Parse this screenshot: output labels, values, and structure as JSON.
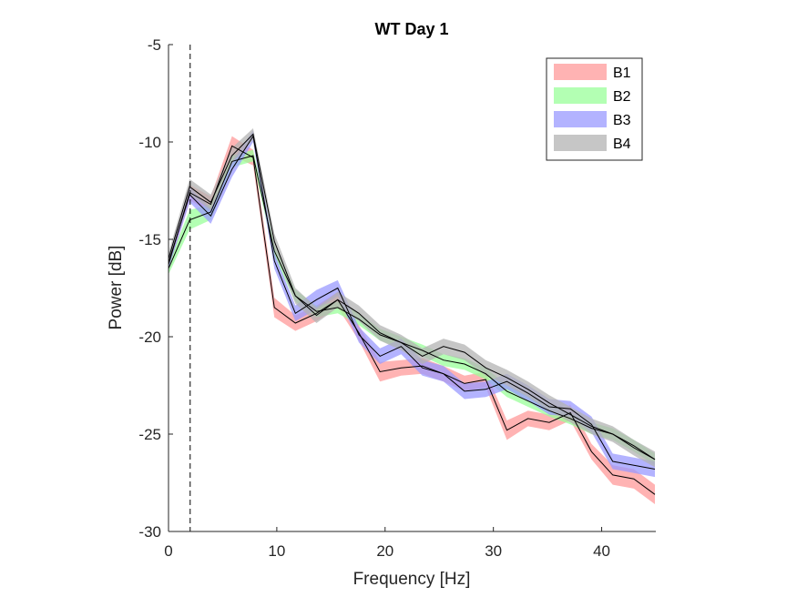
{
  "chart_data": {
    "type": "line",
    "title": "WT Day 1",
    "xlabel": "Frequency [Hz]",
    "ylabel": "Power [dB]",
    "xlim": [
      0,
      45
    ],
    "ylim": [
      -30,
      -5
    ],
    "x_ticks": [
      "0",
      "10",
      "20",
      "30",
      "40"
    ],
    "y_ticks": [
      "-5",
      "-10",
      "-15",
      "-20",
      "-25",
      "-30"
    ],
    "grid": false,
    "legend_position": "top-right",
    "vline_x": 2,
    "x": [
      0,
      1.95,
      3.9,
      5.86,
      7.81,
      9.77,
      11.72,
      13.67,
      15.63,
      17.58,
      19.53,
      21.48,
      23.44,
      25.39,
      27.34,
      29.3,
      31.25,
      33.2,
      35.16,
      37.11,
      39.06,
      41.02,
      42.97,
      44.92
    ],
    "series": [
      {
        "name": "B1",
        "band_color": "#ff9999",
        "line_color": "#000000",
        "values": [
          -16.3,
          -12.6,
          -13.2,
          -10.2,
          -10.8,
          -18.5,
          -19.3,
          -18.8,
          -18.1,
          -19.8,
          -21.8,
          -21.6,
          -21.5,
          -21.9,
          -22.4,
          -22.2,
          -24.8,
          -24.2,
          -24.4,
          -23.9,
          -25.9,
          -27.1,
          -27.3,
          -28.1
        ],
        "band": [
          0.3,
          0.4,
          0.4,
          0.5,
          0.4,
          0.5,
          0.4,
          0.4,
          0.4,
          0.4,
          0.5,
          0.4,
          0.4,
          0.4,
          0.4,
          0.4,
          0.5,
          0.4,
          0.4,
          0.4,
          0.4,
          0.5,
          0.5,
          0.5
        ]
      },
      {
        "name": "B2",
        "band_color": "#99ff99",
        "line_color": "#000000",
        "values": [
          -16.5,
          -14.0,
          -13.6,
          -11.0,
          -10.7,
          -15.6,
          -17.9,
          -18.7,
          -18.5,
          -19.1,
          -19.9,
          -20.3,
          -20.7,
          -21.2,
          -21.4,
          -21.9,
          -22.8,
          -23.3,
          -23.8,
          -24.2,
          -24.7,
          -25.0,
          -25.6,
          -26.3
        ],
        "band": [
          0.3,
          0.5,
          0.4,
          0.3,
          0.3,
          0.3,
          0.3,
          0.3,
          0.3,
          0.3,
          0.3,
          0.3,
          0.3,
          0.3,
          0.3,
          0.3,
          0.3,
          0.3,
          0.3,
          0.3,
          0.3,
          0.3,
          0.3,
          0.3
        ]
      },
      {
        "name": "B3",
        "band_color": "#9999ff",
        "line_color": "#000000",
        "values": [
          -16.2,
          -12.7,
          -13.8,
          -11.4,
          -9.7,
          -16.1,
          -18.8,
          -18.1,
          -17.5,
          -19.9,
          -21.0,
          -20.5,
          -21.6,
          -21.9,
          -22.8,
          -22.7,
          -22.3,
          -22.9,
          -23.6,
          -23.7,
          -24.5,
          -26.4,
          -26.6,
          -26.8
        ],
        "band": [
          0.3,
          0.4,
          0.4,
          0.4,
          0.3,
          0.4,
          0.4,
          0.5,
          0.4,
          0.4,
          0.4,
          0.4,
          0.4,
          0.4,
          0.4,
          0.4,
          0.4,
          0.4,
          0.4,
          0.4,
          0.4,
          0.4,
          0.4,
          0.4
        ]
      },
      {
        "name": "B4",
        "band_color": "#b3b3b3",
        "line_color": "#000000",
        "values": [
          -16.0,
          -12.3,
          -13.1,
          -10.7,
          -9.6,
          -15.1,
          -17.9,
          -18.9,
          -18.1,
          -18.8,
          -19.8,
          -20.3,
          -21.0,
          -20.5,
          -20.8,
          -21.6,
          -22.1,
          -22.7,
          -23.4,
          -24.0,
          -24.6,
          -25.0,
          -25.7,
          -26.3
        ],
        "band": [
          0.3,
          0.4,
          0.4,
          0.4,
          0.3,
          0.4,
          0.4,
          0.4,
          0.4,
          0.4,
          0.4,
          0.4,
          0.4,
          0.4,
          0.4,
          0.4,
          0.4,
          0.4,
          0.4,
          0.4,
          0.4,
          0.4,
          0.4,
          0.4
        ]
      }
    ]
  }
}
